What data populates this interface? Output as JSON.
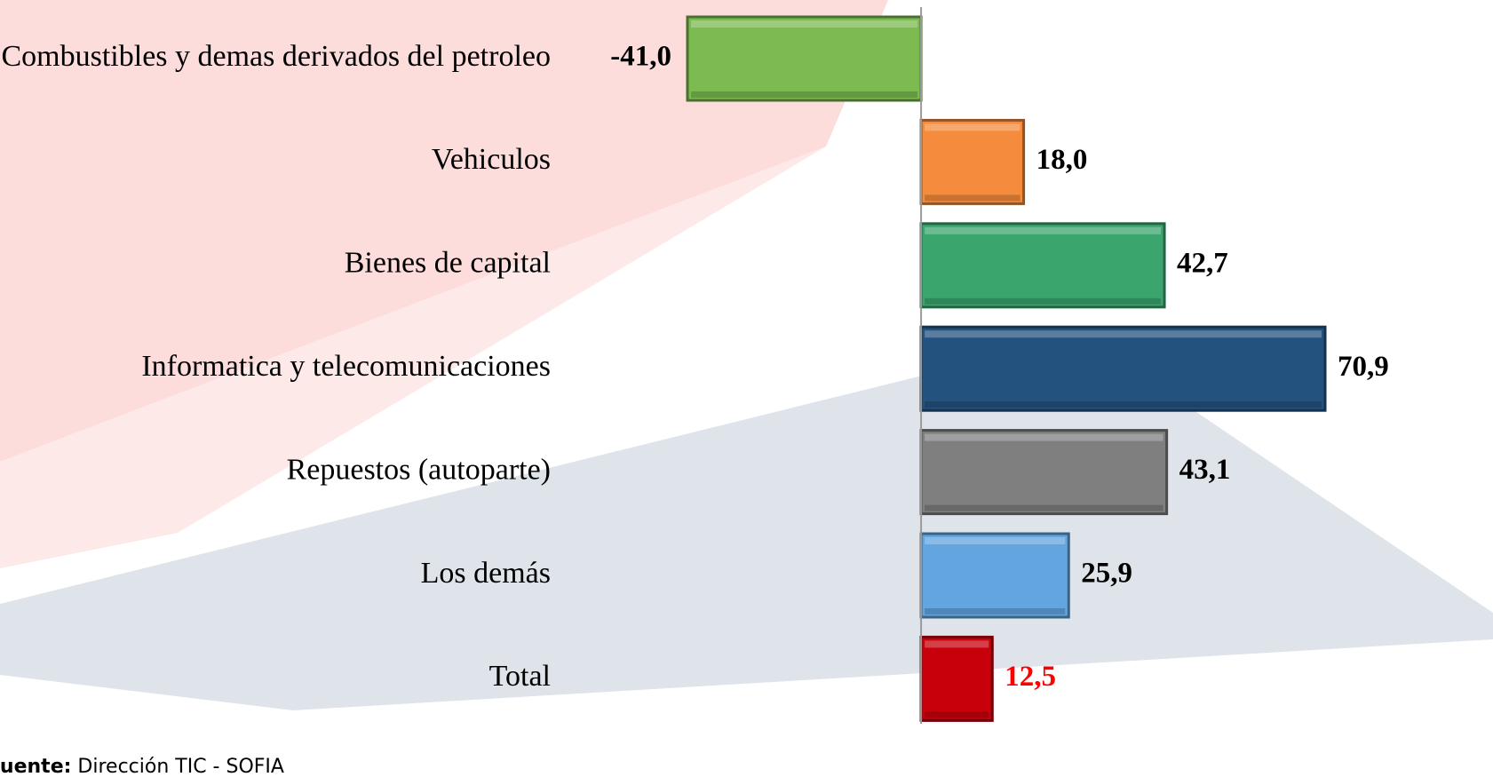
{
  "chart_data": {
    "type": "barh",
    "categories": [
      "Combustibles y demas derivados del petroleo",
      "Vehiculos",
      "Bienes de capital",
      "Informatica y telecomunicaciones",
      "Repuestos (autoparte)",
      "Los demás",
      "Total"
    ],
    "values": [
      -41.0,
      18.0,
      42.7,
      70.9,
      43.1,
      25.9,
      12.5
    ],
    "value_labels": [
      "-41,0",
      "18,0",
      "42,7",
      "70,9",
      "43,1",
      "25,9",
      "12,5"
    ],
    "colors": [
      "#7cba52",
      "#f58b3c",
      "#3aa66e",
      "#24527f",
      "#7f7f7f",
      "#63a5df",
      "#c7000b"
    ],
    "label_colors": [
      "#000000",
      "#000000",
      "#000000",
      "#000000",
      "#000000",
      "#000000",
      "#ff0000"
    ],
    "xlim": [
      -41.0,
      70.9
    ],
    "source": {
      "label": "Fuente:",
      "text": "Dirección TIC - SOFIA"
    }
  }
}
